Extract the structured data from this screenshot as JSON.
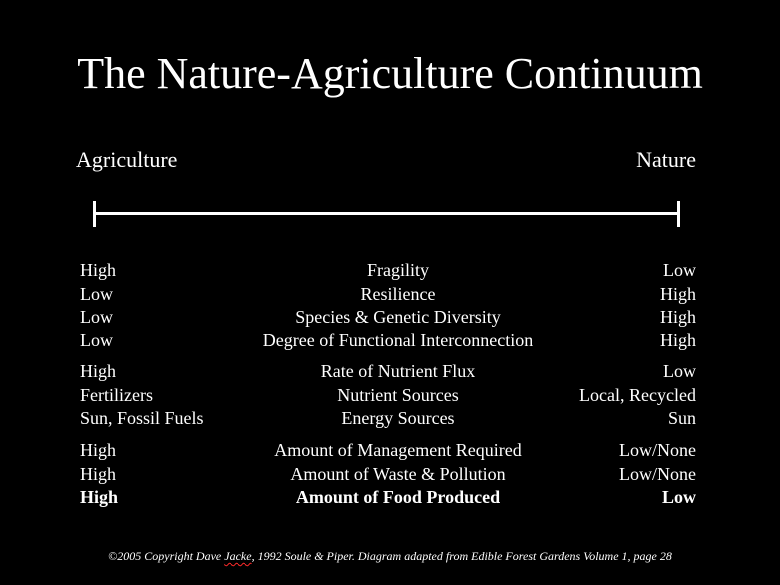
{
  "slide": {
    "title": "The Nature-Agriculture Continuum",
    "left_end": "Agriculture",
    "right_end": "Nature",
    "rows": [
      {
        "left": "High",
        "center": "Fragility",
        "right": "Low",
        "bold": false
      },
      {
        "left": "Low",
        "center": "Resilience",
        "right": "High",
        "bold": false
      },
      {
        "left": "Low",
        "center": "Species & Genetic Diversity",
        "right": "High",
        "bold": false
      },
      {
        "left": "Low",
        "center": "Degree of Functional Interconnection",
        "right": "High",
        "bold": false
      },
      {
        "left": "High",
        "center": "Rate of Nutrient Flux",
        "right": "Low",
        "bold": false
      },
      {
        "left": "Fertilizers",
        "center": "Nutrient Sources",
        "right": "Local, Recycled",
        "bold": false
      },
      {
        "left": "Sun, Fossil Fuels",
        "center": "Energy Sources",
        "right": "Sun",
        "bold": false
      },
      {
        "left": "High",
        "center": "Amount of Management Required",
        "right": "Low/None",
        "bold": false
      },
      {
        "left": "High",
        "center": "Amount of Waste & Pollution",
        "right": "Low/None",
        "bold": false
      },
      {
        "left": "High",
        "center": "Amount of Food Produced",
        "right": "Low",
        "bold": true
      }
    ],
    "footer": {
      "before": "©2005 Copyright Dave ",
      "name": "Jacke",
      "after": ", 1992 Soule & Piper. Diagram adapted from Edible Forest Gardens Volume 1, page 28"
    }
  },
  "colors": {
    "background": "#000000",
    "text": "#ffffff",
    "spellcheck_underline": "#ff2a2a"
  }
}
